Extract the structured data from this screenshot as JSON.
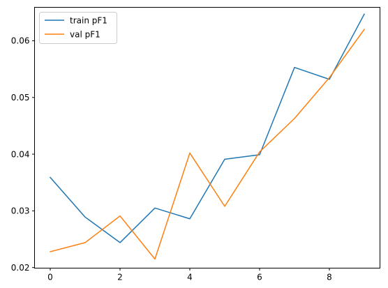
{
  "chart_data": {
    "type": "line",
    "title": "",
    "xlabel": "",
    "ylabel": "",
    "x": [
      0,
      1,
      2,
      3,
      4,
      5,
      6,
      7,
      8,
      9
    ],
    "xlim": [
      -0.45,
      9.45
    ],
    "ylim": [
      0.0199,
      0.0659
    ],
    "xticks": [
      0,
      2,
      4,
      6,
      8
    ],
    "yticks": [
      0.02,
      0.03,
      0.04,
      0.05,
      0.06
    ],
    "xtick_labels": [
      "0",
      "2",
      "4",
      "6",
      "8"
    ],
    "ytick_labels": [
      "0.02",
      "0.03",
      "0.04",
      "0.05",
      "0.06"
    ],
    "grid": false,
    "legend_position": "top-left",
    "series": [
      {
        "name": "train pF1",
        "color": "#1f77b4",
        "values": [
          0.0359,
          0.0289,
          0.0244,
          0.0305,
          0.0286,
          0.0391,
          0.0399,
          0.0553,
          0.0532,
          0.0647
        ]
      },
      {
        "name": "val pF1",
        "color": "#ff7f0e",
        "values": [
          0.0228,
          0.0244,
          0.0291,
          0.0215,
          0.0402,
          0.0308,
          0.0404,
          0.0463,
          0.0535,
          0.062
        ]
      }
    ]
  }
}
